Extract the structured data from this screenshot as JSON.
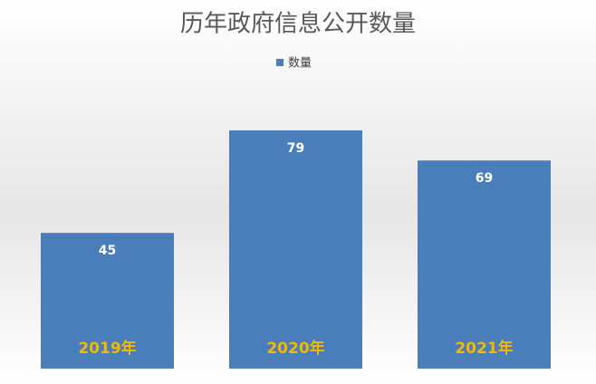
{
  "chart_data": {
    "type": "bar",
    "title": "历年政府信息公开数量",
    "legend": "数量",
    "categories": [
      "2019年",
      "2020年",
      "2021年"
    ],
    "values": [
      45,
      79,
      69
    ],
    "color": "#4a7ebb",
    "label_color": "#f5b800",
    "ylim": [
      0,
      100
    ]
  }
}
